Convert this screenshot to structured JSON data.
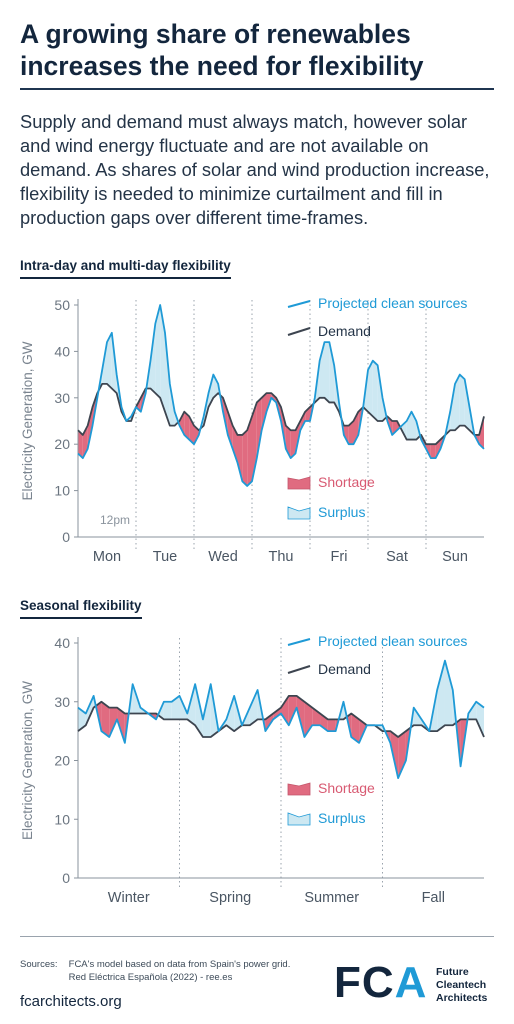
{
  "header": {
    "title_line1": "A growing share of renewables",
    "title_line2": "increases the need for flexibility"
  },
  "intro": "Supply and demand must always match, however solar and wind energy fluctuate and are not available on demand. As shares of solar and wind production increase, flexibility is needed to minimize curtailment and fill in production gaps over different time-frames.",
  "sections": {
    "intraday": "Intra-day and multi-day flexibility",
    "seasonal": "Seasonal flexibility"
  },
  "colors": {
    "projected": "#1f9ad6",
    "demand": "#3d4550",
    "shortage": "#e06b80",
    "surplus": "#cde8f2",
    "axis": "#8a939d",
    "grid": "#9aa3ad",
    "navy": "#13263d"
  },
  "chart_data": [
    {
      "type": "area",
      "ylabel": "Electricity Generation, GW",
      "ylim": [
        0,
        50
      ],
      "yticks": [
        0,
        10,
        20,
        30,
        40,
        50
      ],
      "x_unit": "hours",
      "xlim": [
        0,
        168
      ],
      "categories": [
        "Mon",
        "Tue",
        "Wed",
        "Thu",
        "Fri",
        "Sat",
        "Sun"
      ],
      "annotation": "12pm",
      "grid": "vertical dotted day separators",
      "legend_position": "top-right",
      "legend": {
        "projected": "Projected clean sources",
        "demand": "Demand",
        "shortage": "Shortage",
        "surplus": "Surplus"
      },
      "series": [
        {
          "name": "Projected clean sources",
          "x": [
            0,
            2,
            4,
            6,
            8,
            10,
            12,
            14,
            16,
            18,
            20,
            22,
            24,
            26,
            28,
            30,
            32,
            34,
            36,
            38,
            40,
            42,
            44,
            46,
            48,
            50,
            52,
            54,
            56,
            58,
            60,
            62,
            64,
            66,
            68,
            70,
            72,
            74,
            76,
            78,
            80,
            82,
            84,
            86,
            88,
            90,
            92,
            94,
            96,
            98,
            100,
            102,
            104,
            106,
            108,
            110,
            112,
            114,
            116,
            118,
            120,
            122,
            124,
            126,
            128,
            130,
            132,
            134,
            136,
            138,
            140,
            142,
            144,
            146,
            148,
            150,
            152,
            154,
            156,
            158,
            160,
            162,
            164,
            166,
            168
          ],
          "values": [
            18,
            17,
            19,
            24,
            30,
            36,
            42,
            44,
            35,
            28,
            25,
            26,
            28,
            27,
            31,
            38,
            46,
            50,
            44,
            33,
            27,
            24,
            22,
            21,
            20,
            22,
            26,
            31,
            35,
            33,
            27,
            22,
            19,
            16,
            12,
            11,
            12,
            17,
            23,
            27,
            30,
            29,
            25,
            19,
            17,
            18,
            23,
            25,
            25,
            30,
            38,
            42,
            42,
            37,
            29,
            22,
            20,
            20,
            22,
            28,
            36,
            38,
            37,
            30,
            25,
            22,
            23,
            24,
            25,
            27,
            25,
            21,
            19,
            17,
            17,
            19,
            22,
            27,
            33,
            35,
            34,
            28,
            22,
            20,
            19
          ]
        },
        {
          "name": "Demand",
          "x": [
            0,
            2,
            4,
            6,
            8,
            10,
            12,
            14,
            16,
            18,
            20,
            22,
            24,
            26,
            28,
            30,
            32,
            34,
            36,
            38,
            40,
            42,
            44,
            46,
            48,
            50,
            52,
            54,
            56,
            58,
            60,
            62,
            64,
            66,
            68,
            70,
            72,
            74,
            76,
            78,
            80,
            82,
            84,
            86,
            88,
            90,
            92,
            94,
            96,
            98,
            100,
            102,
            104,
            106,
            108,
            110,
            112,
            114,
            116,
            118,
            120,
            122,
            124,
            126,
            128,
            130,
            132,
            134,
            136,
            138,
            140,
            142,
            144,
            146,
            148,
            150,
            152,
            154,
            156,
            158,
            160,
            162,
            164,
            166,
            168
          ],
          "values": [
            23,
            22,
            24,
            28,
            31,
            33,
            33,
            32,
            31,
            27,
            25,
            25,
            28,
            30,
            32,
            32,
            31,
            30,
            27,
            24,
            24,
            25,
            27,
            26,
            24,
            23,
            24,
            28,
            30,
            31,
            30,
            27,
            24,
            22,
            22,
            23,
            26,
            29,
            30,
            31,
            31,
            30,
            28,
            24,
            23,
            23,
            25,
            27,
            28,
            29,
            30,
            30,
            29,
            29,
            27,
            24,
            24,
            25,
            27,
            28,
            27,
            26,
            25,
            25,
            26,
            25,
            25,
            23,
            21,
            21,
            21,
            22,
            20,
            20,
            20,
            21,
            22,
            23,
            23,
            24,
            24,
            23,
            22,
            22,
            26
          ]
        }
      ]
    },
    {
      "type": "area",
      "ylabel": "Electricity Generation, GW",
      "ylim": [
        0,
        40
      ],
      "yticks": [
        0,
        10,
        20,
        30,
        40
      ],
      "x_unit": "weeks",
      "xlim": [
        0,
        52
      ],
      "categories": [
        "Winter",
        "Spring",
        "Summer",
        "Fall"
      ],
      "grid": "vertical dotted season separators",
      "legend_position": "top-right",
      "legend": {
        "projected": "Projected clean sources",
        "demand": "Demand",
        "shortage": "Shortage",
        "surplus": "Surplus"
      },
      "series": [
        {
          "name": "Projected clean sources",
          "x": [
            0,
            1,
            2,
            3,
            4,
            5,
            6,
            7,
            8,
            9,
            10,
            11,
            12,
            13,
            14,
            15,
            16,
            17,
            18,
            19,
            20,
            21,
            22,
            23,
            24,
            25,
            26,
            27,
            28,
            29,
            30,
            31,
            32,
            33,
            34,
            35,
            36,
            37,
            38,
            39,
            40,
            41,
            42,
            43,
            44,
            45,
            46,
            47,
            48,
            49,
            50,
            51,
            52
          ],
          "values": [
            29,
            28,
            31,
            25,
            24,
            27,
            23,
            33,
            29,
            28,
            27,
            30,
            30,
            31,
            28,
            33,
            27,
            33,
            25,
            27,
            31,
            26,
            29,
            32,
            25,
            27,
            28,
            26,
            29,
            24,
            26,
            26,
            25,
            25,
            30,
            24,
            23,
            26,
            26,
            26,
            23,
            17,
            20,
            29,
            27,
            25,
            32,
            37,
            32,
            19,
            28,
            30,
            29
          ]
        },
        {
          "name": "Demand",
          "x": [
            0,
            1,
            2,
            3,
            4,
            5,
            6,
            7,
            8,
            9,
            10,
            11,
            12,
            13,
            14,
            15,
            16,
            17,
            18,
            19,
            20,
            21,
            22,
            23,
            24,
            25,
            26,
            27,
            28,
            29,
            30,
            31,
            32,
            33,
            34,
            35,
            36,
            37,
            38,
            39,
            40,
            41,
            42,
            43,
            44,
            45,
            46,
            47,
            48,
            49,
            50,
            51,
            52
          ],
          "values": [
            25,
            26,
            29,
            30,
            29,
            29,
            28,
            28,
            28,
            28,
            28,
            27,
            27,
            27,
            27,
            26,
            24,
            24,
            25,
            26,
            25,
            26,
            26,
            27,
            27,
            28,
            29,
            31,
            31,
            30,
            29,
            28,
            27,
            27,
            27,
            28,
            27,
            26,
            26,
            25,
            25,
            24,
            25,
            26,
            26,
            25,
            25,
            26,
            26,
            27,
            27,
            27,
            24
          ]
        }
      ]
    }
  ],
  "footer": {
    "sources_label": "Sources:",
    "sources_line1": "FCA's model based on data from Spain's power grid.",
    "sources_line2": "Red Eléctrica Española (2022) - ree.es",
    "website": "fcarchitects.org",
    "logo_mark_fc": "FC",
    "logo_mark_a": "A",
    "logo_name_1": "Future",
    "logo_name_2": "Cleantech",
    "logo_name_3": "Architects"
  }
}
